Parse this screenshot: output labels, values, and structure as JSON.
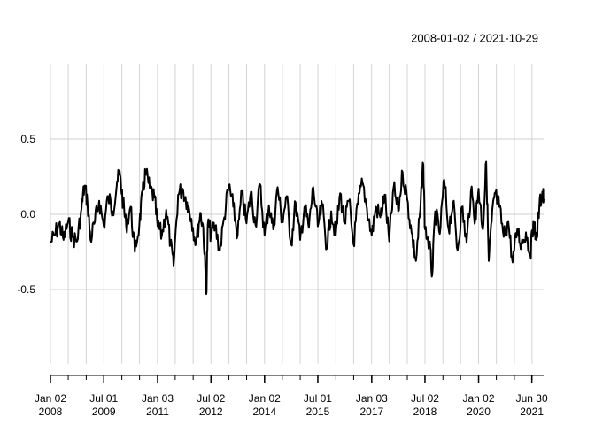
{
  "chart_data": {
    "type": "line",
    "title": "",
    "date_range": "2008-01-02 / 2021-10-29",
    "x_start": "2008-01-02",
    "x_end": "2021-10-29",
    "ylim": [
      -1.0,
      1.0
    ],
    "y_ticks": [
      {
        "value": 0.5,
        "label": "0.5"
      },
      {
        "value": 0.0,
        "label": "0.0"
      },
      {
        "value": -0.5,
        "label": "-0.5"
      }
    ],
    "x_ticks": [
      {
        "date": "2008-01-02",
        "label1": "Jan 02",
        "label2": "2008"
      },
      {
        "date": "2009-07-01",
        "label1": "Jul 01",
        "label2": "2009"
      },
      {
        "date": "2011-01-03",
        "label1": "Jan 03",
        "label2": "2011"
      },
      {
        "date": "2012-07-02",
        "label1": "Jul 02",
        "label2": "2012"
      },
      {
        "date": "2014-01-02",
        "label1": "Jan 02",
        "label2": "2014"
      },
      {
        "date": "2015-07-01",
        "label1": "Jul 01",
        "label2": "2015"
      },
      {
        "date": "2017-01-03",
        "label1": "Jan 03",
        "label2": "2017"
      },
      {
        "date": "2018-07-02",
        "label1": "Jul 02",
        "label2": "2018"
      },
      {
        "date": "2020-01-02",
        "label1": "Jan 02",
        "label2": "2020"
      },
      {
        "date": "2021-06-30",
        "label1": "Jun 30",
        "label2": "2021"
      }
    ],
    "grid": true,
    "series": [
      {
        "color": "#000000",
        "points": [
          [
            "2008-01-02",
            -0.19
          ],
          [
            "2008-02-15",
            -0.14
          ],
          [
            "2008-04-01",
            -0.06
          ],
          [
            "2008-05-15",
            -0.17
          ],
          [
            "2008-07-01",
            -0.05
          ],
          [
            "2008-08-15",
            -0.15
          ],
          [
            "2008-10-01",
            -0.18
          ],
          [
            "2008-11-15",
            0.04
          ],
          [
            "2008-12-15",
            0.19
          ],
          [
            "2009-01-15",
            0.08
          ],
          [
            "2009-02-15",
            -0.17
          ],
          [
            "2009-04-01",
            -0.05
          ],
          [
            "2009-05-15",
            0.09
          ],
          [
            "2009-07-01",
            -0.08
          ],
          [
            "2009-08-15",
            0.12
          ],
          [
            "2009-10-01",
            0.02
          ],
          [
            "2009-11-15",
            0.22
          ],
          [
            "2009-12-15",
            0.26
          ],
          [
            "2010-01-15",
            0.07
          ],
          [
            "2010-02-15",
            -0.08
          ],
          [
            "2010-04-01",
            0.05
          ],
          [
            "2010-05-15",
            -0.25
          ],
          [
            "2010-07-01",
            -0.06
          ],
          [
            "2010-08-01",
            0.13
          ],
          [
            "2010-09-01",
            0.28
          ],
          [
            "2010-10-15",
            0.17
          ],
          [
            "2010-12-01",
            0.11
          ],
          [
            "2011-01-03",
            -0.08
          ],
          [
            "2011-02-15",
            -0.14
          ],
          [
            "2011-04-01",
            0.03
          ],
          [
            "2011-05-15",
            -0.2
          ],
          [
            "2011-06-15",
            -0.34
          ],
          [
            "2011-08-01",
            0.13
          ],
          [
            "2011-09-15",
            0.17
          ],
          [
            "2011-11-01",
            0.08
          ],
          [
            "2011-12-15",
            -0.03
          ],
          [
            "2012-02-01",
            -0.19
          ],
          [
            "2012-03-15",
            0.01
          ],
          [
            "2012-04-15",
            -0.09
          ],
          [
            "2012-05-15",
            -0.53
          ],
          [
            "2012-06-01",
            -0.06
          ],
          [
            "2012-07-02",
            -0.13
          ],
          [
            "2012-08-15",
            -0.08
          ],
          [
            "2012-10-01",
            -0.24
          ],
          [
            "2012-11-15",
            -0.02
          ],
          [
            "2013-01-01",
            0.19
          ],
          [
            "2013-02-15",
            0.05
          ],
          [
            "2013-04-01",
            -0.14
          ],
          [
            "2013-05-15",
            0.14
          ],
          [
            "2013-07-01",
            -0.06
          ],
          [
            "2013-08-15",
            0.15
          ],
          [
            "2013-10-01",
            -0.07
          ],
          [
            "2013-11-15",
            0.2
          ],
          [
            "2014-01-02",
            -0.14
          ],
          [
            "2014-02-15",
            0.06
          ],
          [
            "2014-04-01",
            -0.1
          ],
          [
            "2014-05-15",
            0.18
          ],
          [
            "2014-07-01",
            -0.05
          ],
          [
            "2014-08-15",
            0.12
          ],
          [
            "2014-10-01",
            -0.2
          ],
          [
            "2014-11-15",
            0.08
          ],
          [
            "2015-01-01",
            -0.17
          ],
          [
            "2015-02-15",
            0.05
          ],
          [
            "2015-04-01",
            -0.09
          ],
          [
            "2015-05-15",
            0.18
          ],
          [
            "2015-07-01",
            -0.08
          ],
          [
            "2015-08-15",
            0.06
          ],
          [
            "2015-10-01",
            -0.22
          ],
          [
            "2015-11-15",
            0.02
          ],
          [
            "2016-01-01",
            -0.14
          ],
          [
            "2016-02-15",
            0.14
          ],
          [
            "2016-04-01",
            -0.06
          ],
          [
            "2016-05-15",
            0.09
          ],
          [
            "2016-07-01",
            -0.2
          ],
          [
            "2016-08-15",
            0.07
          ],
          [
            "2016-10-01",
            0.21
          ],
          [
            "2016-11-15",
            0.04
          ],
          [
            "2017-01-03",
            -0.14
          ],
          [
            "2017-02-15",
            0.05
          ],
          [
            "2017-04-01",
            -0.02
          ],
          [
            "2017-05-15",
            0.13
          ],
          [
            "2017-07-01",
            -0.18
          ],
          [
            "2017-08-15",
            0.18
          ],
          [
            "2017-10-01",
            0.02
          ],
          [
            "2017-11-15",
            0.28
          ],
          [
            "2018-01-01",
            0.1
          ],
          [
            "2018-02-15",
            -0.12
          ],
          [
            "2018-04-01",
            -0.31
          ],
          [
            "2018-05-15",
            0.03
          ],
          [
            "2018-06-15",
            0.33
          ],
          [
            "2018-07-02",
            -0.1
          ],
          [
            "2018-08-15",
            -0.2
          ],
          [
            "2018-09-15",
            -0.4
          ],
          [
            "2018-10-15",
            0.02
          ],
          [
            "2018-12-01",
            -0.13
          ],
          [
            "2019-01-15",
            0.23
          ],
          [
            "2019-03-01",
            -0.1
          ],
          [
            "2019-04-15",
            0.08
          ],
          [
            "2019-06-01",
            -0.24
          ],
          [
            "2019-07-15",
            0.05
          ],
          [
            "2019-09-01",
            -0.19
          ],
          [
            "2019-10-15",
            0.15
          ],
          [
            "2019-12-01",
            -0.03
          ],
          [
            "2020-01-02",
            0.17
          ],
          [
            "2020-02-15",
            -0.1
          ],
          [
            "2020-03-20",
            0.35
          ],
          [
            "2020-04-15",
            -0.31
          ],
          [
            "2020-05-15",
            -0.05
          ],
          [
            "2020-06-15",
            0.14
          ],
          [
            "2020-08-01",
            0.05
          ],
          [
            "2020-09-15",
            -0.15
          ],
          [
            "2020-11-01",
            -0.05
          ],
          [
            "2020-12-15",
            -0.32
          ],
          [
            "2021-02-01",
            -0.1
          ],
          [
            "2021-03-15",
            -0.2
          ],
          [
            "2021-05-01",
            -0.12
          ],
          [
            "2021-06-15",
            -0.27
          ],
          [
            "2021-07-15",
            -0.05
          ],
          [
            "2021-08-15",
            -0.17
          ],
          [
            "2021-09-15",
            0.05
          ],
          [
            "2021-10-15",
            0.15
          ],
          [
            "2021-10-29",
            0.1
          ]
        ]
      }
    ]
  }
}
